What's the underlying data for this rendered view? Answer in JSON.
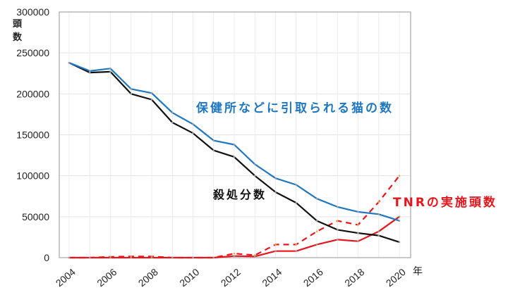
{
  "chart_data": {
    "type": "line",
    "title": "",
    "xlabel": "年",
    "ylabel": "頭数",
    "ylim": [
      0,
      300000
    ],
    "yticks": [
      0,
      50000,
      100000,
      150000,
      200000,
      250000,
      300000
    ],
    "ytick_labels": [
      "0",
      "50000",
      "100000",
      "150000",
      "200000",
      "250000",
      "300000"
    ],
    "xlim": [
      2004,
      2020
    ],
    "xticks": [
      2004,
      2006,
      2008,
      2010,
      2012,
      2014,
      2016,
      2018,
      2020
    ],
    "xtick_labels": [
      "2004",
      "2006",
      "2008",
      "2010",
      "2012",
      "2014",
      "2016",
      "2018",
      "2020"
    ],
    "grid": true,
    "x": [
      2004,
      2005,
      2006,
      2007,
      2008,
      2009,
      2010,
      2011,
      2012,
      2013,
      2014,
      2015,
      2016,
      2017,
      2018,
      2019,
      2020
    ],
    "series": [
      {
        "name": "保健所などに引取られる猫の数",
        "color": "#1f77c0",
        "style": "solid",
        "values": [
          238000,
          228000,
          231000,
          206000,
          201000,
          177000,
          163000,
          143000,
          138000,
          114000,
          97000,
          89000,
          72000,
          62000,
          56000,
          53000,
          45000
        ]
      },
      {
        "name": "殺処分数",
        "color": "#111111",
        "style": "solid",
        "values": [
          238000,
          226000,
          227000,
          200000,
          193000,
          165000,
          152000,
          131000,
          123000,
          100000,
          80000,
          67000,
          45000,
          34000,
          30000,
          27000,
          19000
        ]
      },
      {
        "name": "TNRの実施頭数",
        "color": "#e8141c",
        "style": "solid",
        "values": [
          0,
          0,
          0,
          0,
          0,
          0,
          0,
          0,
          2000,
          1500,
          8000,
          8000,
          16000,
          22000,
          20000,
          32000,
          50000
        ]
      },
      {
        "name": "TNRの実施頭数 (dashed)",
        "color": "#e8141c",
        "style": "dashed",
        "values": [
          0,
          0,
          1000,
          1500,
          1500,
          0,
          0,
          0,
          5000,
          3000,
          16000,
          16000,
          32000,
          45000,
          40000,
          68000,
          100000
        ]
      }
    ],
    "annotations": [
      {
        "text": "保健所などに引取られる猫の数",
        "color": "#1f77c0"
      },
      {
        "text": "殺処分数",
        "color": "#111111"
      },
      {
        "text": "TNRの実施頭数",
        "color": "#e8141c"
      }
    ]
  }
}
